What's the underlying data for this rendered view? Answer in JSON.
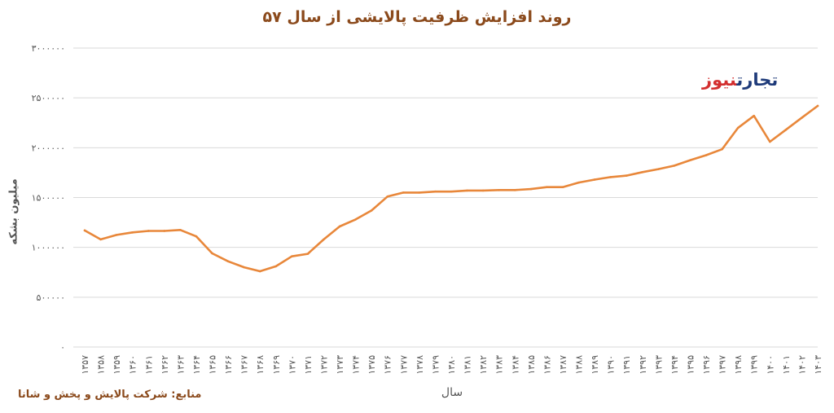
{
  "chart_data": {
    "type": "line",
    "title": "روند افزایش ظرفیت پالایشی از سال ۵۷",
    "xlabel": "سال",
    "ylabel": "میلیون بشکه",
    "ylim": [
      0,
      3000000
    ],
    "yticks": [
      0,
      500000,
      1000000,
      1500000,
      2000000,
      2500000,
      3000000
    ],
    "ytick_labels": [
      "۰",
      "۵۰۰۰۰۰",
      "۱۰۰۰۰۰۰",
      "۱۵۰۰۰۰۰",
      "۲۰۰۰۰۰۰",
      "۲۵۰۰۰۰۰",
      "۳۰۰۰۰۰۰"
    ],
    "grid": true,
    "color": "#e8873a",
    "categories": [
      "۱۳۵۷",
      "۱۳۵۸",
      "۱۳۵۹",
      "۱۳۶۰",
      "۱۳۶۱",
      "۱۳۶۲",
      "۱۳۶۳",
      "۱۳۶۴",
      "۱۳۶۵",
      "۱۳۶۶",
      "۱۳۶۷",
      "۱۳۶۸",
      "۱۳۶۹",
      "۱۳۷۰",
      "۱۳۷۱",
      "۱۳۷۲",
      "۱۳۷۳",
      "۱۳۷۴",
      "۱۳۷۵",
      "۱۳۷۶",
      "۱۳۷۷",
      "۱۳۷۸",
      "۱۳۷۹",
      "۱۳۸۰",
      "۱۳۸۱",
      "۱۳۸۲",
      "۱۳۸۳",
      "۱۳۸۴",
      "۱۳۸۵",
      "۱۳۸۶",
      "۱۳۸۷",
      "۱۳۸۸",
      "۱۳۸۹",
      "۱۳۹۰",
      "۱۳۹۱",
      "۱۳۹۲",
      "۱۳۹۳",
      "۱۳۹۴",
      "۱۳۹۵",
      "۱۳۹۶",
      "۱۳۹۷",
      "۱۳۹۸",
      "۱۳۹۹",
      "۱۴۰۰",
      "۱۴۰۱",
      "۱۴۰۲",
      "۱۴۰۳"
    ],
    "values": [
      1170000,
      1080000,
      1125000,
      1150000,
      1165000,
      1165000,
      1175000,
      1110000,
      940000,
      860000,
      800000,
      760000,
      810000,
      910000,
      935000,
      1080000,
      1210000,
      1280000,
      1370000,
      1510000,
      1550000,
      1550000,
      1560000,
      1560000,
      1570000,
      1570000,
      1575000,
      1575000,
      1585000,
      1605000,
      1605000,
      1650000,
      1680000,
      1705000,
      1720000,
      1755000,
      1785000,
      1820000,
      1875000,
      1925000,
      1985000,
      2200000,
      2320000,
      2060000,
      2180000,
      2300000,
      2420000
    ]
  },
  "source": "منابع: شرکت پالایش و پخش و شانا",
  "logo": {
    "part1": "تجارت",
    "part2": "نیوز",
    "color1": "#1f3b7a",
    "color2": "#d32f2f"
  }
}
